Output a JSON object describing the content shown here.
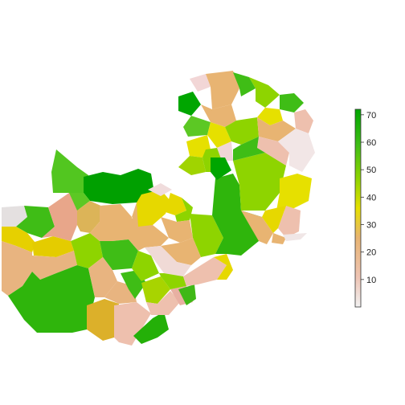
{
  "map": {
    "title": "",
    "region": "Zambia districts (choropleth)",
    "legend": {
      "ticks": [
        "70",
        "60",
        "50",
        "40",
        "30",
        "20",
        "10"
      ],
      "min": 0,
      "max": 72,
      "colors": {
        "low": "#f2f2f2",
        "pink": "#eec4b4",
        "tan": "#e8b472",
        "yellow": "#e6e000",
        "lightgreen": "#8ed400",
        "green": "#3fbd16",
        "darkgreen": "#00a600"
      }
    }
  }
}
